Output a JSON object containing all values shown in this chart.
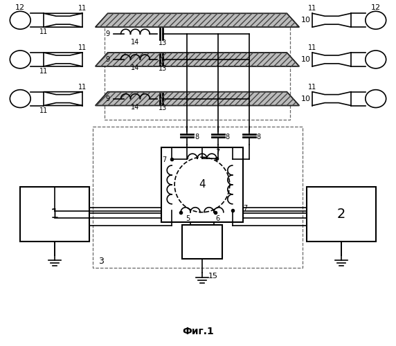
{
  "fig_label": "Фиг.1",
  "bg_color": "#ffffff",
  "line_color": "#000000",
  "fig_width": 5.72,
  "fig_height": 5.0,
  "dpi": 100
}
